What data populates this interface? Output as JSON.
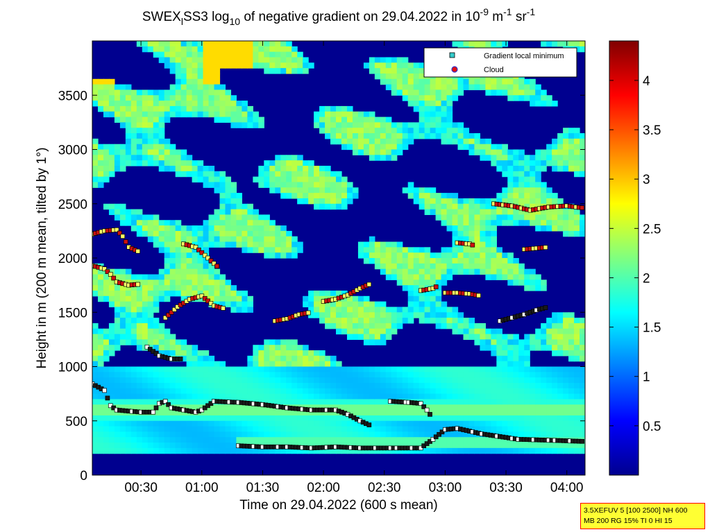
{
  "chart_data": {
    "type": "heatmap",
    "title": {
      "prefix": "SWEX",
      "sub": "l",
      "middle": "SS3 log",
      "sub2": "10",
      "after": " of negative gradient on 29.04.2022 in 10",
      "sup1": "-9",
      "unit_m": " m",
      "sup2": "-1",
      "unit_sr": " sr",
      "sup3": "-1"
    },
    "xlabel": "Time on 29.04.2022 (600 s mean)",
    "ylabel": "Height in m (200 m mean, tilted by 1°)",
    "x_range_hours": [
      0.1,
      4.15
    ],
    "ylim": [
      0,
      4000
    ],
    "x_ticks": [
      {
        "label": "00:30",
        "value": 0.5
      },
      {
        "label": "01:00",
        "value": 1.0
      },
      {
        "label": "01:30",
        "value": 1.5
      },
      {
        "label": "02:00",
        "value": 2.0
      },
      {
        "label": "02:30",
        "value": 2.5
      },
      {
        "label": "03:00",
        "value": 3.0
      },
      {
        "label": "03:30",
        "value": 3.5
      },
      {
        "label": "04:00",
        "value": 4.0
      }
    ],
    "y_ticks": [
      {
        "label": "0",
        "value": 0
      },
      {
        "label": "500",
        "value": 500
      },
      {
        "label": "1000",
        "value": 1000
      },
      {
        "label": "1500",
        "value": 1500
      },
      {
        "label": "2000",
        "value": 2000
      },
      {
        "label": "2500",
        "value": 2500
      },
      {
        "label": "3000",
        "value": 3000
      },
      {
        "label": "3500",
        "value": 3500
      }
    ],
    "colorbar": {
      "range": [
        0,
        4.4
      ],
      "ticks": [
        {
          "label": "0.5",
          "value": 0.5
        },
        {
          "label": "1",
          "value": 1
        },
        {
          "label": "1.5",
          "value": 1.5
        },
        {
          "label": "2",
          "value": 2
        },
        {
          "label": "2.5",
          "value": 2.5
        },
        {
          "label": "3",
          "value": 3
        },
        {
          "label": "3.5",
          "value": 3.5
        },
        {
          "label": "4",
          "value": 4
        }
      ],
      "colormap": "jet"
    },
    "legend": {
      "position": "top-right",
      "entries": [
        {
          "label": "Gradient local minimum",
          "marker": "square",
          "color": "#33cccc"
        },
        {
          "label": "Cloud",
          "marker": "circle",
          "color": "#e01010"
        }
      ]
    },
    "layers": [
      {
        "name": "boundary",
        "h": 600,
        "thickness": 90,
        "value": 2.3
      },
      {
        "name": "low-band",
        "h": 300,
        "thickness": 60,
        "value": 2.0
      }
    ],
    "series": [
      {
        "kind": "gradient-minimum-trace",
        "points": [
          [
            0.1,
            840
          ],
          [
            0.2,
            780
          ],
          [
            0.25,
            640
          ],
          [
            0.3,
            600
          ],
          [
            0.5,
            580
          ],
          [
            0.6,
            580
          ],
          [
            0.65,
            660
          ],
          [
            0.7,
            680
          ],
          [
            0.75,
            620
          ],
          [
            0.85,
            600
          ],
          [
            0.95,
            580
          ],
          [
            1.0,
            600
          ],
          [
            1.1,
            680
          ],
          [
            1.3,
            670
          ],
          [
            1.5,
            650
          ],
          [
            1.7,
            620
          ],
          [
            1.9,
            600
          ],
          [
            2.1,
            600
          ],
          [
            2.2,
            560
          ],
          [
            2.3,
            500
          ],
          [
            2.4,
            450
          ]
        ]
      },
      {
        "kind": "gradient-minimum-trace",
        "points": [
          [
            1.3,
            270
          ],
          [
            1.5,
            260
          ],
          [
            1.7,
            260
          ],
          [
            1.9,
            250
          ],
          [
            2.1,
            260
          ],
          [
            2.3,
            250
          ],
          [
            2.6,
            250
          ],
          [
            2.8,
            250
          ],
          [
            2.9,
            330
          ],
          [
            3.0,
            420
          ],
          [
            3.1,
            430
          ],
          [
            3.3,
            380
          ],
          [
            3.6,
            330
          ],
          [
            3.9,
            320
          ],
          [
            4.15,
            310
          ]
        ]
      },
      {
        "kind": "gradient-minimum-trace",
        "points": [
          [
            2.55,
            680
          ],
          [
            2.7,
            670
          ],
          [
            2.8,
            660
          ],
          [
            2.85,
            600
          ],
          [
            2.9,
            520
          ]
        ]
      },
      {
        "kind": "cloud-trace",
        "points": [
          [
            0.1,
            1930
          ],
          [
            0.2,
            1900
          ],
          [
            0.25,
            1850
          ],
          [
            0.3,
            1780
          ],
          [
            0.4,
            1750
          ],
          [
            0.5,
            1760
          ]
        ]
      },
      {
        "kind": "cloud-trace",
        "points": [
          [
            0.1,
            2220
          ],
          [
            0.2,
            2250
          ],
          [
            0.3,
            2260
          ],
          [
            0.35,
            2200
          ],
          [
            0.4,
            2100
          ],
          [
            0.5,
            2050
          ]
        ]
      },
      {
        "kind": "cloud-trace",
        "points": [
          [
            0.85,
            2130
          ],
          [
            0.95,
            2100
          ],
          [
            1.05,
            2000
          ],
          [
            1.1,
            1950
          ],
          [
            1.15,
            1900
          ]
        ]
      },
      {
        "kind": "cloud-trace",
        "points": [
          [
            0.7,
            1450
          ],
          [
            0.8,
            1550
          ],
          [
            0.9,
            1620
          ],
          [
            1.0,
            1650
          ],
          [
            1.1,
            1560
          ],
          [
            1.2,
            1530
          ]
        ]
      },
      {
        "kind": "cloud-trace",
        "points": [
          [
            1.6,
            1420
          ],
          [
            1.7,
            1440
          ],
          [
            1.8,
            1480
          ],
          [
            1.9,
            1500
          ]
        ]
      },
      {
        "kind": "cloud-trace",
        "points": [
          [
            2.0,
            1600
          ],
          [
            2.1,
            1620
          ],
          [
            2.2,
            1660
          ],
          [
            2.3,
            1720
          ],
          [
            2.4,
            1770
          ]
        ]
      },
      {
        "kind": "cloud-trace",
        "points": [
          [
            2.8,
            1700
          ],
          [
            2.9,
            1720
          ],
          [
            2.95,
            1750
          ]
        ]
      },
      {
        "kind": "cloud-trace",
        "points": [
          [
            3.0,
            1680
          ],
          [
            3.1,
            1680
          ],
          [
            3.2,
            1670
          ],
          [
            3.3,
            1650
          ]
        ]
      },
      {
        "kind": "cloud-trace",
        "points": [
          [
            3.4,
            2500
          ],
          [
            3.55,
            2480
          ],
          [
            3.7,
            2440
          ],
          [
            3.85,
            2470
          ],
          [
            4.0,
            2480
          ],
          [
            4.15,
            2460
          ]
        ]
      },
      {
        "kind": "cloud-trace",
        "points": [
          [
            3.1,
            2140
          ],
          [
            3.2,
            2130
          ],
          [
            3.25,
            2110
          ]
        ]
      },
      {
        "kind": "cloud-trace",
        "points": [
          [
            3.65,
            2080
          ],
          [
            3.75,
            2090
          ],
          [
            3.85,
            2100
          ]
        ]
      },
      {
        "kind": "gradient-minimum-trace",
        "points": [
          [
            0.55,
            1180
          ],
          [
            0.65,
            1100
          ],
          [
            0.75,
            1070
          ],
          [
            0.85,
            1070
          ]
        ]
      },
      {
        "kind": "gradient-minimum-trace",
        "points": [
          [
            3.45,
            1420
          ],
          [
            3.55,
            1450
          ],
          [
            3.65,
            1480
          ],
          [
            3.75,
            1520
          ],
          [
            3.85,
            1550
          ]
        ]
      }
    ]
  },
  "info_box": {
    "line1": "3.5XEFUV 5 [100 2500] NH 600",
    "line2": "MB 200 RG 15% TI 0 HI 15"
  }
}
